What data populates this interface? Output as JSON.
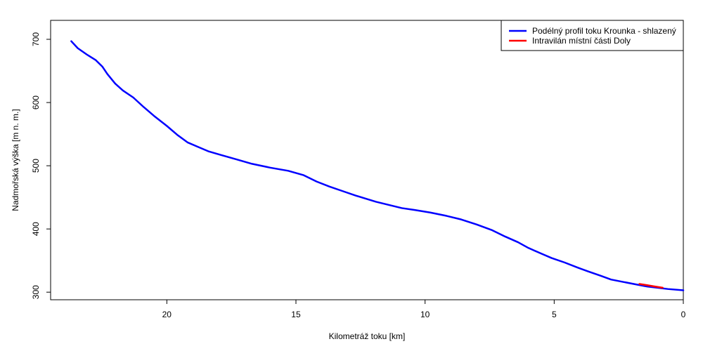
{
  "chart_data": {
    "type": "line",
    "xlabel": "Kilometráž toku [km]",
    "ylabel": "Nadmořská výška [m n. m.]",
    "x_reversed": true,
    "xlim": [
      0,
      24.5
    ],
    "ylim": [
      288,
      730
    ],
    "x_ticks": [
      20,
      15,
      10,
      5,
      0
    ],
    "x_tick_labels": [
      "20",
      "15",
      "10",
      "5",
      "0"
    ],
    "y_ticks": [
      300,
      400,
      500,
      600,
      700
    ],
    "y_tick_labels": [
      "300",
      "400",
      "500",
      "600",
      "700"
    ],
    "legend_position": "top-right",
    "series": [
      {
        "name": "Podélný profil toku Krounka - shlazený",
        "color": "#0000FF",
        "x": [
          23.7,
          23.45,
          23.1,
          22.75,
          22.5,
          22.3,
          22.0,
          21.7,
          21.3,
          20.9,
          20.5,
          20.0,
          19.6,
          19.2,
          18.8,
          18.4,
          17.9,
          17.3,
          16.7,
          16.0,
          15.3,
          14.7,
          14.2,
          13.7,
          13.2,
          12.7,
          12.3,
          11.9,
          11.4,
          10.9,
          10.4,
          9.8,
          9.2,
          8.6,
          8.0,
          7.4,
          6.9,
          6.4,
          6.0,
          5.5,
          5.1,
          4.6,
          4.1,
          3.7,
          3.2,
          2.8,
          2.3,
          1.8,
          1.4,
          1.0,
          0.6,
          0.0
        ],
        "values": [
          697,
          686,
          676,
          667,
          657,
          645,
          630,
          619,
          608,
          593,
          579,
          563,
          549,
          537,
          530,
          523,
          517,
          510,
          503,
          497,
          492,
          485,
          475,
          467,
          460,
          453,
          448,
          443,
          438,
          433,
          430,
          426,
          421,
          415,
          407,
          398,
          388,
          379,
          370,
          361,
          354,
          347,
          339,
          333,
          326,
          320,
          316,
          312,
          309,
          307,
          305,
          303
        ]
      },
      {
        "name": "Intravilán místní části Doly",
        "color": "#FF0000",
        "x": [
          1.7,
          1.4,
          1.1,
          0.8
        ],
        "values": [
          313,
          311,
          309,
          307
        ]
      }
    ]
  }
}
